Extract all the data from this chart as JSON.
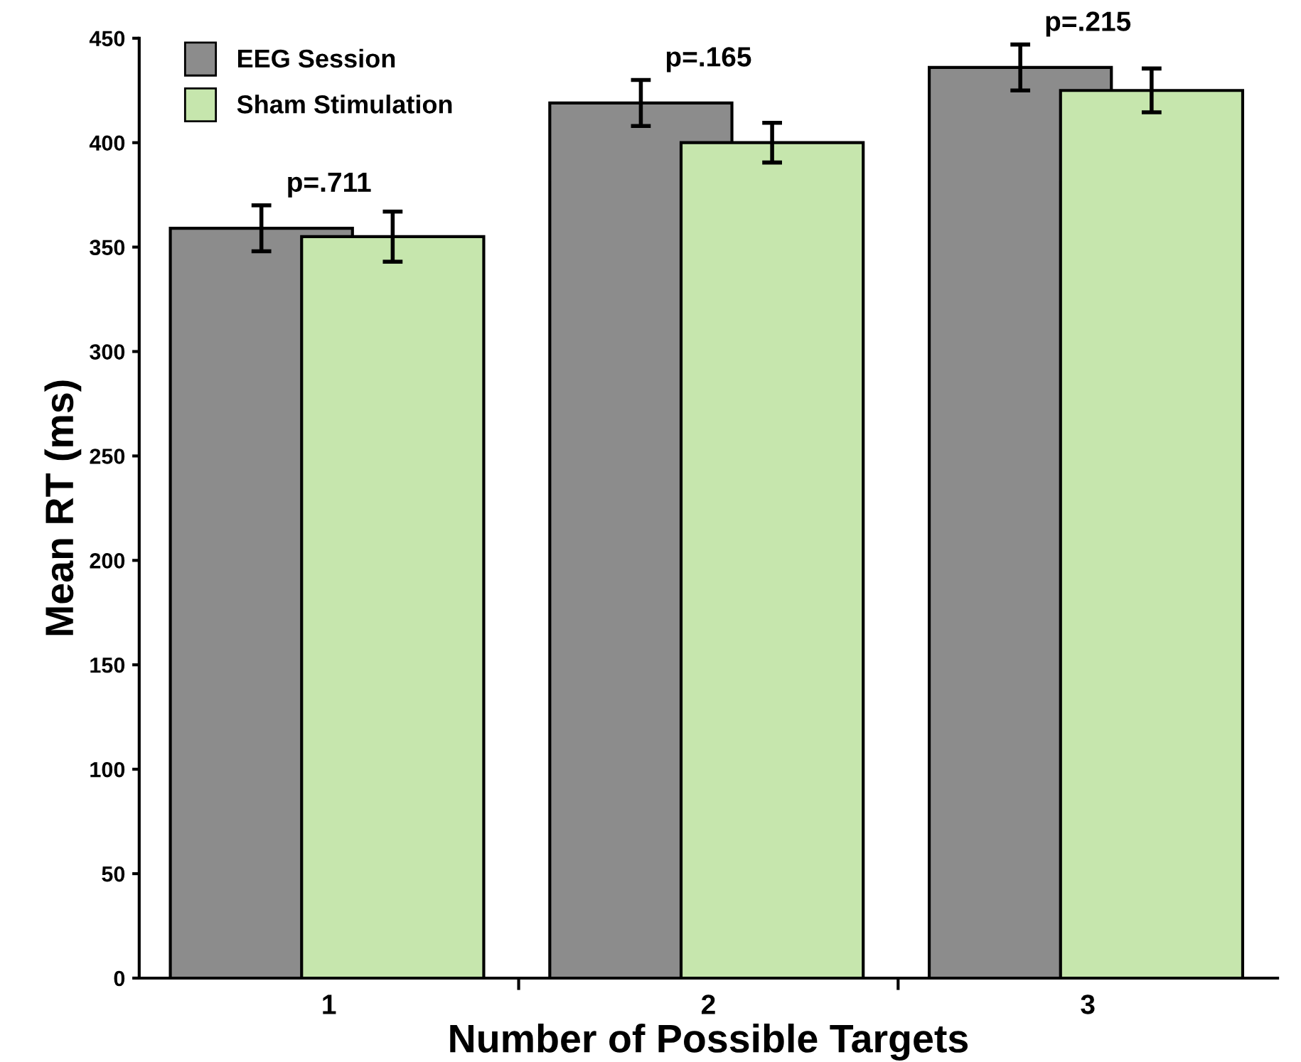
{
  "chart_data": {
    "type": "bar",
    "xlabel": "Number of Possible Targets",
    "ylabel": "Mean RT (ms)",
    "categories": [
      "1",
      "2",
      "3"
    ],
    "series": [
      {
        "name": "EEG Session",
        "color": "#8c8c8c",
        "values": [
          359,
          419,
          436
        ],
        "errors": [
          11,
          11,
          11
        ]
      },
      {
        "name": "Sham Stimulation",
        "color": "#c6e6ad",
        "values": [
          355,
          400,
          425
        ],
        "errors": [
          12,
          9.5,
          10.5
        ]
      }
    ],
    "ylim": [
      0,
      450
    ],
    "yticks": [
      0,
      50,
      100,
      150,
      200,
      250,
      300,
      350,
      400,
      450
    ],
    "annotations": [
      "p=.711",
      "p=.165",
      "p=.215"
    ],
    "legend": "top left",
    "grid": false
  }
}
